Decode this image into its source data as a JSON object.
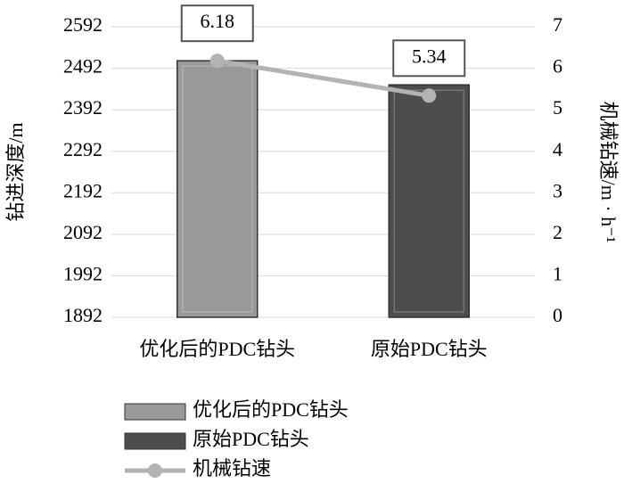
{
  "chart_data": {
    "type": "bar-line",
    "y_label": "钻进深度/m",
    "y2_label": "机械钻速/m · h⁻¹",
    "categories": [
      "优化后的PDC钻头",
      "原始PDC钻头"
    ],
    "ylim": [
      1892,
      2592
    ],
    "yticks": [
      1892,
      1992,
      2092,
      2192,
      2292,
      2392,
      2492,
      2592
    ],
    "y2lim": [
      0,
      7
    ],
    "y2ticks": [
      0,
      1,
      2,
      3,
      4,
      5,
      6,
      7
    ],
    "bar_series": [
      {
        "name": "优化后的PDC钻头",
        "color": "#999999",
        "index": 0,
        "value": 2510
      },
      {
        "name": "原始PDC钻头",
        "color": "#4d4d4d",
        "index": 1,
        "value": 2452
      }
    ],
    "series": [
      {
        "name": "机械钻速",
        "color": "#b3b3b3",
        "axis": "y2",
        "values": [
          6.18,
          5.34
        ]
      }
    ],
    "grid": true
  }
}
